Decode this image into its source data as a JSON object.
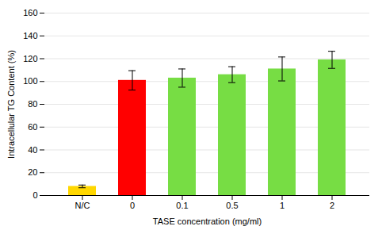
{
  "chart_data": {
    "type": "bar",
    "categories": [
      "N/C",
      "0",
      "0.1",
      "0.5",
      "1",
      "2"
    ],
    "values": [
      8,
      101,
      103,
      106,
      111,
      119
    ],
    "errors": [
      1.2,
      8.5,
      8.0,
      7.0,
      10.5,
      7.5
    ],
    "colors": [
      "#FFD700",
      "#FF0000",
      "#77DD44",
      "#77DD44",
      "#77DD44",
      "#77DD44"
    ],
    "xlabel": "TASE concentration (mg/ml)",
    "ylabel": "Intracellular TG Content (%)",
    "ylim": [
      0,
      160
    ],
    "yticks": [
      0,
      20,
      40,
      60,
      80,
      100,
      120,
      140,
      160
    ],
    "grid": true
  }
}
